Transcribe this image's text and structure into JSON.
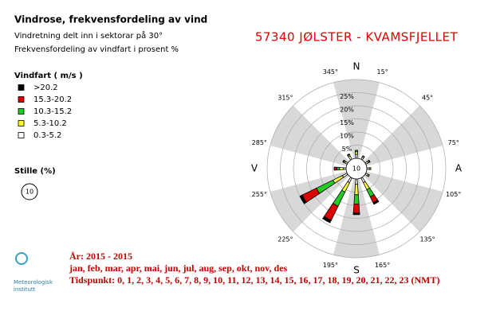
{
  "chart_data": {
    "type": "windrose",
    "title": "Vindrose, frekvensfordeling av vind",
    "subtitle": [
      "Vindretning delt inn i sektorar på 30°",
      "Frekvensfordeling av vindfart i prosent %"
    ],
    "station": "57340 JØLSTER - KVAMSFJELLET",
    "legend_title": "Vindfart ( m/s )",
    "calm_label": "Stille (%)",
    "calm": 10,
    "x": [
      0,
      30,
      60,
      90,
      120,
      150,
      180,
      210,
      240,
      270,
      300,
      330
    ],
    "series": [
      {
        "name": ">20.2",
        "color": "#000000",
        "values": [
          0,
          0,
          0,
          0,
          0,
          0.7,
          0.6,
          1,
          1,
          0,
          0,
          0
        ]
      },
      {
        "name": "15.3-20.2",
        "color": "#dd0000",
        "values": [
          0,
          0,
          0,
          0,
          0,
          2.5,
          3.5,
          6,
          6,
          1,
          0,
          0
        ]
      },
      {
        "name": "10.3-15.2",
        "color": "#22cc22",
        "values": [
          0.5,
          0,
          0.3,
          0,
          0,
          3,
          3.5,
          6,
          7,
          1,
          0.3,
          0.3
        ]
      },
      {
        "name": "5.3-10.2",
        "color": "#ffff33",
        "values": [
          1,
          0.5,
          0.5,
          0.5,
          0.5,
          3,
          4,
          4,
          4,
          1.5,
          0.5,
          0.5
        ]
      },
      {
        "name": "0.3-5.2",
        "color": "#ffffff",
        "values": [
          1.5,
          1,
          1,
          1,
          1,
          2,
          2,
          2,
          2,
          1,
          1,
          1.5
        ]
      }
    ],
    "rlim": [
      0,
      30
    ],
    "rticks": [
      {
        "value": 5,
        "label": "5%"
      },
      {
        "value": 10,
        "label": "10%"
      },
      {
        "value": 15,
        "label": "15%"
      },
      {
        "value": 20,
        "label": "20%"
      },
      {
        "value": 25,
        "label": "25%"
      }
    ],
    "angle_ticks": [
      {
        "value": 15,
        "label": "15°"
      },
      {
        "value": 45,
        "label": "45°"
      },
      {
        "value": 75,
        "label": "75°"
      },
      {
        "value": 105,
        "label": "105°"
      },
      {
        "value": 135,
        "label": "135°"
      },
      {
        "value": 165,
        "label": "165°"
      },
      {
        "value": 195,
        "label": "195°"
      },
      {
        "value": 225,
        "label": "225°"
      },
      {
        "value": 255,
        "label": "255°"
      },
      {
        "value": 285,
        "label": "285°"
      },
      {
        "value": 315,
        "label": "315°"
      },
      {
        "value": 345,
        "label": "345°"
      }
    ],
    "compass": [
      {
        "value": 0,
        "label": "N"
      },
      {
        "value": 90,
        "label": "A"
      },
      {
        "value": 180,
        "label": "S"
      },
      {
        "value": 270,
        "label": "V"
      }
    ],
    "period": "År: 2015 - 2015",
    "months": "jan, feb, mar, apr, mai, jun, jul, aug, sep, okt, nov, des",
    "hours": "Tidspunkt: 0, 1, 2, 3, 4, 5, 6, 7, 8, 9, 10, 11, 12, 13, 14, 15, 16, 17, 18, 19, 20, 21, 22, 23 (NMT)",
    "logo": [
      "Meteorologisk",
      "institutt"
    ]
  }
}
